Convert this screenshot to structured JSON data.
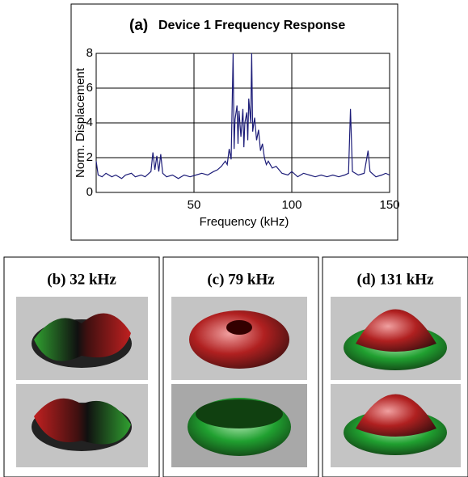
{
  "chart_data": {
    "type": "line",
    "panel_label": "(a)",
    "title": "Device 1 Frequency Response",
    "x_label": "Frequency (kHz)",
    "y_label": "Norm. Displacement",
    "xlim": [
      0,
      150
    ],
    "xticks": [
      50,
      100,
      150
    ],
    "ylim": [
      0,
      8
    ],
    "yticks": [
      0,
      2,
      4,
      6,
      8
    ],
    "grid": true,
    "series": [
      {
        "color": "#1c1c78",
        "x": [
          0,
          1,
          3,
          5,
          8,
          10,
          13,
          15,
          18,
          20,
          23,
          25,
          28,
          29,
          30,
          31,
          32,
          33,
          34,
          36,
          39,
          42,
          45,
          48,
          51,
          54,
          57,
          60,
          62,
          64,
          66,
          67,
          68,
          69,
          70,
          70.5,
          71,
          72,
          72.5,
          73,
          74,
          75,
          75.5,
          76,
          77,
          77.5,
          78,
          79,
          79.5,
          80,
          81,
          82,
          83,
          84,
          85,
          86,
          87,
          88,
          90,
          92,
          95,
          98,
          100,
          103,
          106,
          109,
          112,
          115,
          118,
          121,
          124,
          127,
          129,
          130,
          131,
          134,
          137,
          139,
          140,
          143,
          146,
          148,
          150
        ],
        "values": [
          1.8,
          1.0,
          0.9,
          1.1,
          0.9,
          1.0,
          0.8,
          1.0,
          1.1,
          0.9,
          1.0,
          0.9,
          1.2,
          2.3,
          1.3,
          2.1,
          1.2,
          2.2,
          1.1,
          0.9,
          1.0,
          0.8,
          1.0,
          0.9,
          1.0,
          1.1,
          1.0,
          1.2,
          1.3,
          1.5,
          1.8,
          1.6,
          2.5,
          1.9,
          8.0,
          2.5,
          4.2,
          5.0,
          2.8,
          4.7,
          3.2,
          4.8,
          2.6,
          4.0,
          4.6,
          3.0,
          5.4,
          4.0,
          8.0,
          3.5,
          4.3,
          3.0,
          3.6,
          2.4,
          2.8,
          2.0,
          1.6,
          1.8,
          1.4,
          1.5,
          1.1,
          1.0,
          1.2,
          0.9,
          1.1,
          1.0,
          0.9,
          1.0,
          0.9,
          1.0,
          0.9,
          1.0,
          1.1,
          4.8,
          1.2,
          1.0,
          1.1,
          2.4,
          1.2,
          0.9,
          1.0,
          1.1,
          1.0
        ]
      }
    ]
  },
  "panels": [
    {
      "title": "(b)  32 kHz"
    },
    {
      "title": "(c)  79 kHz"
    },
    {
      "title": "(d)  131 kHz"
    }
  ]
}
